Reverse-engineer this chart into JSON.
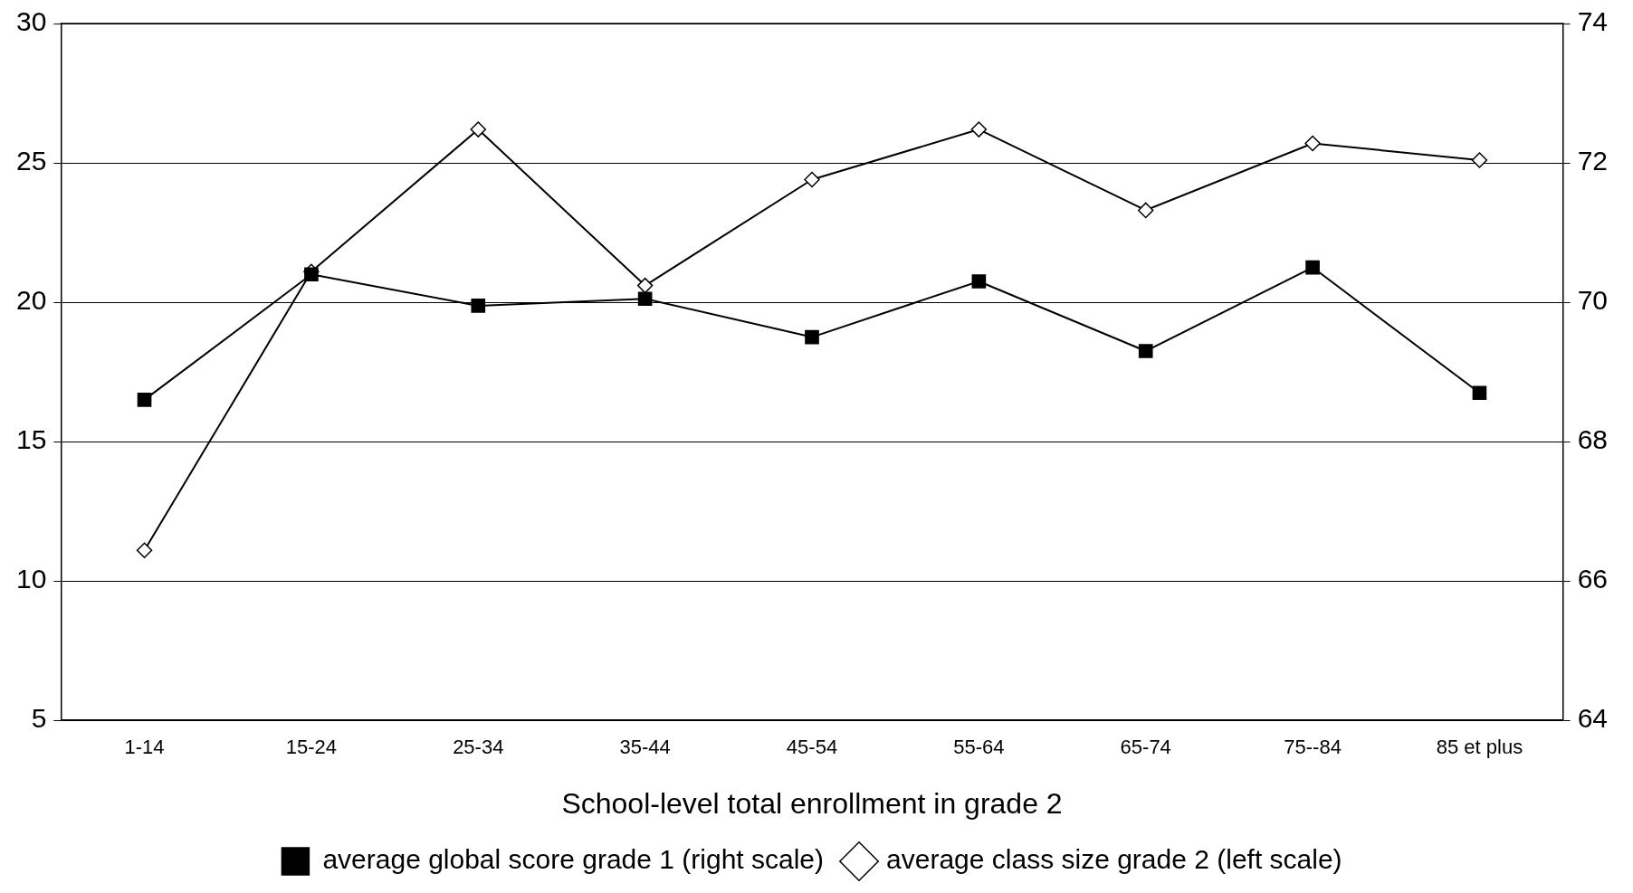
{
  "chart_data": {
    "type": "line",
    "xlabel": "School-level total enrollment in grade 2",
    "categories": [
      "1-14",
      "15-24",
      "25-34",
      "35-44",
      "45-54",
      "55-64",
      "65-74",
      "75--84",
      "85 et plus"
    ],
    "series": [
      {
        "name": "average class size grade 2 (left scale)",
        "color": "#000000",
        "marker": "diamond",
        "values": [
          11.1,
          21.1,
          26.2,
          20.6,
          24.4,
          26.2,
          23.3,
          25.7,
          25.1
        ]
      },
      {
        "name": "average global score grade 1 (right scale)",
        "color": "#000000",
        "marker": "square",
        "axis": "y2",
        "values": [
          68.6,
          70.4,
          69.95,
          70.05,
          69.5,
          70.3,
          69.3,
          70.5,
          68.7
        ]
      }
    ],
    "ylim": [
      5,
      30
    ],
    "yticks": [
      5,
      10,
      15,
      20,
      25,
      30
    ],
    "y2lim": [
      64,
      74
    ],
    "y2ticks": [
      64,
      66,
      68,
      70,
      72,
      74
    ],
    "grid": "y",
    "legend": "bottom"
  }
}
